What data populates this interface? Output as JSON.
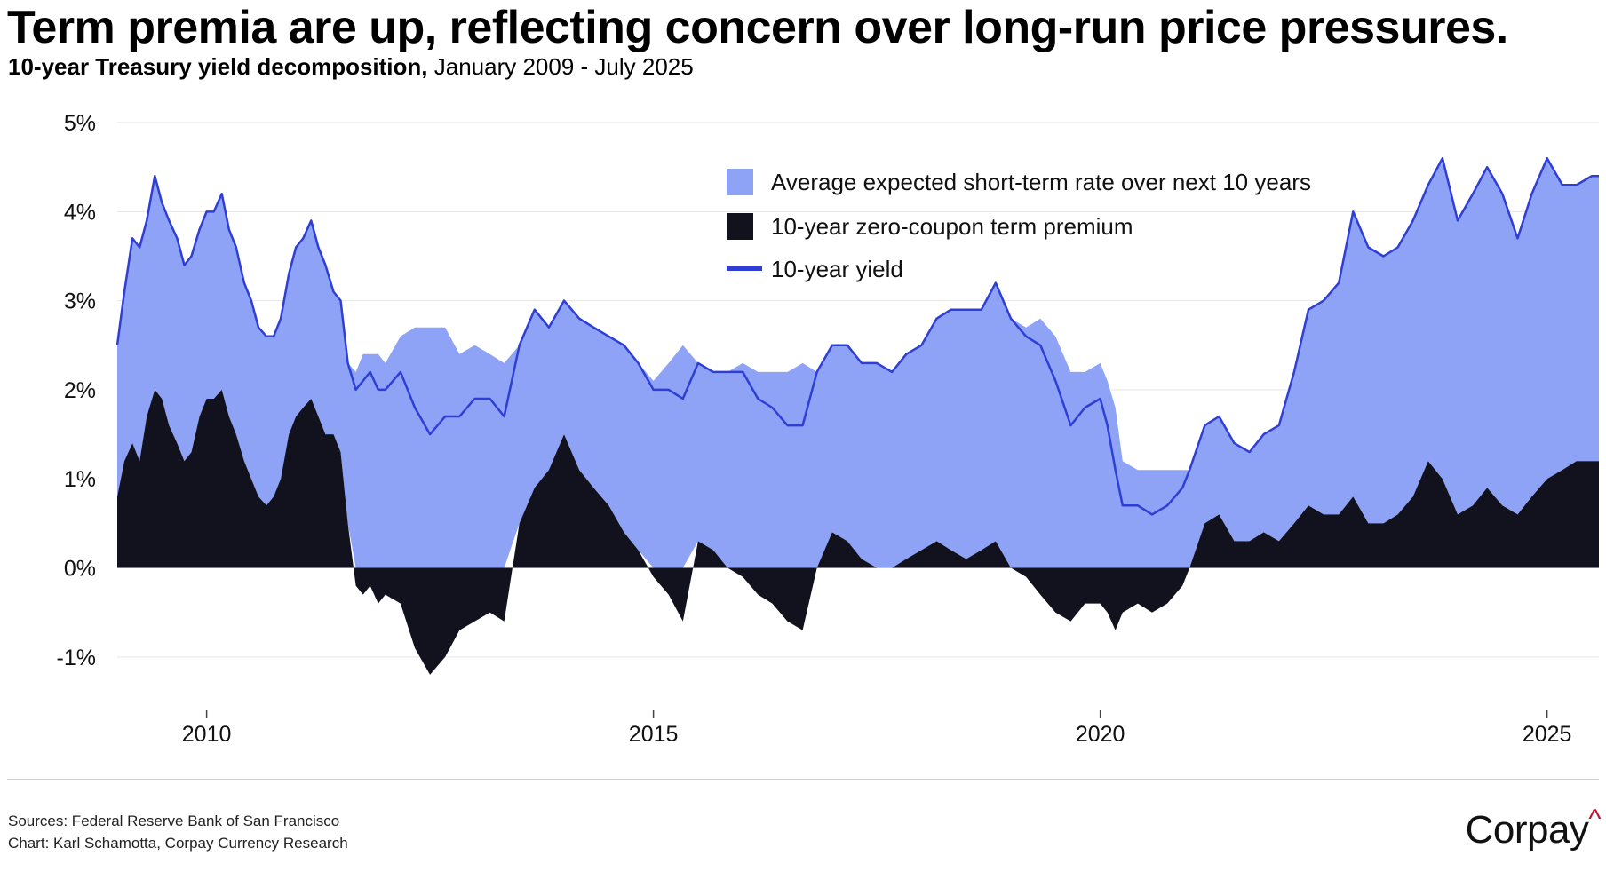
{
  "header": {
    "title": "Term premia are up, reflecting concern over long-run price pressures.",
    "subtitle_strong": "10-year Treasury yield decomposition,",
    "subtitle_rest": " January 2009 - July 2025"
  },
  "footer": {
    "source_line": "Sources: Federal Reserve Bank of San Francisco",
    "chart_line": "Chart: Karl Schamotta, Corpay Currency Research",
    "logo_text": "Corpay",
    "logo_mark": "^"
  },
  "colors": {
    "expected_rate": "#8ea3f5",
    "term_premium": "#12121f",
    "yield": "#2f3fd6",
    "grid": "#e6e6e6",
    "logo_accent": "#c8102e"
  },
  "chart_data": {
    "type": "area",
    "x_unit": "year",
    "xlim": [
      2009.0,
      2025.58
    ],
    "ylim": [
      -1.6,
      5.2
    ],
    "x_ticks": [
      {
        "value": 2010,
        "label": "2010"
      },
      {
        "value": 2015,
        "label": "2015"
      },
      {
        "value": 2020,
        "label": "2020"
      },
      {
        "value": 2025,
        "label": "2025"
      }
    ],
    "y_ticks": [
      {
        "value": 5,
        "label": "5%"
      },
      {
        "value": 4,
        "label": "4%"
      },
      {
        "value": 3,
        "label": "3%"
      },
      {
        "value": 2,
        "label": "2%"
      },
      {
        "value": 1,
        "label": "1%"
      },
      {
        "value": 0,
        "label": "0%"
      },
      {
        "value": -1,
        "label": "-1%"
      }
    ],
    "grid": true,
    "legend_position": "top-center",
    "legend": [
      {
        "key": "expected",
        "label": "Average expected short-term rate over next 10 years",
        "swatch": "square"
      },
      {
        "key": "premium",
        "label": "10-year zero-coupon term premium",
        "swatch": "square"
      },
      {
        "key": "yield",
        "label": "10-year yield",
        "swatch": "line"
      }
    ],
    "x": [
      2009.0,
      2009.08,
      2009.17,
      2009.25,
      2009.33,
      2009.42,
      2009.5,
      2009.58,
      2009.67,
      2009.75,
      2009.83,
      2009.92,
      2010.0,
      2010.08,
      2010.17,
      2010.25,
      2010.33,
      2010.42,
      2010.5,
      2010.58,
      2010.67,
      2010.75,
      2010.83,
      2010.92,
      2011.0,
      2011.08,
      2011.17,
      2011.25,
      2011.33,
      2011.42,
      2011.5,
      2011.58,
      2011.67,
      2011.75,
      2011.83,
      2011.92,
      2012.0,
      2012.17,
      2012.33,
      2012.5,
      2012.67,
      2012.83,
      2013.0,
      2013.17,
      2013.33,
      2013.5,
      2013.67,
      2013.83,
      2014.0,
      2014.17,
      2014.33,
      2014.5,
      2014.67,
      2014.83,
      2015.0,
      2015.17,
      2015.33,
      2015.5,
      2015.67,
      2015.83,
      2016.0,
      2016.17,
      2016.33,
      2016.5,
      2016.67,
      2016.83,
      2017.0,
      2017.17,
      2017.33,
      2017.5,
      2017.67,
      2017.83,
      2018.0,
      2018.17,
      2018.33,
      2018.5,
      2018.67,
      2018.83,
      2019.0,
      2019.17,
      2019.33,
      2019.5,
      2019.67,
      2019.83,
      2020.0,
      2020.08,
      2020.17,
      2020.25,
      2020.42,
      2020.58,
      2020.75,
      2020.92,
      2021.0,
      2021.17,
      2021.33,
      2021.5,
      2021.67,
      2021.83,
      2022.0,
      2022.17,
      2022.33,
      2022.5,
      2022.67,
      2022.83,
      2023.0,
      2023.17,
      2023.33,
      2023.5,
      2023.67,
      2023.83,
      2024.0,
      2024.17,
      2024.33,
      2024.5,
      2024.67,
      2024.83,
      2025.0,
      2025.17,
      2025.33,
      2025.5,
      2025.58
    ],
    "series": [
      {
        "key": "yield",
        "name": "10-year yield",
        "values": [
          2.5,
          3.1,
          3.7,
          3.6,
          3.9,
          4.4,
          4.1,
          3.9,
          3.7,
          3.4,
          3.5,
          3.8,
          4.0,
          4.0,
          4.2,
          3.8,
          3.6,
          3.2,
          3.0,
          2.7,
          2.6,
          2.6,
          2.8,
          3.3,
          3.6,
          3.7,
          3.9,
          3.6,
          3.4,
          3.1,
          3.0,
          2.3,
          2.0,
          2.1,
          2.2,
          2.0,
          2.0,
          2.2,
          1.8,
          1.5,
          1.7,
          1.7,
          1.9,
          1.9,
          1.7,
          2.5,
          2.9,
          2.7,
          3.0,
          2.8,
          2.7,
          2.6,
          2.5,
          2.3,
          2.0,
          2.0,
          1.9,
          2.3,
          2.2,
          2.2,
          2.2,
          1.9,
          1.8,
          1.6,
          1.6,
          2.2,
          2.5,
          2.5,
          2.3,
          2.3,
          2.2,
          2.4,
          2.5,
          2.8,
          2.9,
          2.9,
          2.9,
          3.2,
          2.8,
          2.6,
          2.5,
          2.1,
          1.6,
          1.8,
          1.9,
          1.6,
          1.1,
          0.7,
          0.7,
          0.6,
          0.7,
          0.9,
          1.1,
          1.6,
          1.7,
          1.4,
          1.3,
          1.5,
          1.6,
          2.2,
          2.9,
          3.0,
          3.2,
          4.0,
          3.6,
          3.5,
          3.6,
          3.9,
          4.3,
          4.6,
          3.9,
          4.2,
          4.5,
          4.2,
          3.7,
          4.2,
          4.6,
          4.3,
          4.3,
          4.4,
          4.4
        ]
      },
      {
        "key": "premium",
        "name": "10-year zero-coupon term premium",
        "values": [
          0.8,
          1.2,
          1.4,
          1.2,
          1.7,
          2.0,
          1.9,
          1.6,
          1.4,
          1.2,
          1.3,
          1.7,
          1.9,
          1.9,
          2.0,
          1.7,
          1.5,
          1.2,
          1.0,
          0.8,
          0.7,
          0.8,
          1.0,
          1.5,
          1.7,
          1.8,
          1.9,
          1.7,
          1.5,
          1.5,
          1.3,
          0.5,
          -0.2,
          -0.3,
          -0.2,
          -0.4,
          -0.3,
          -0.4,
          -0.9,
          -1.2,
          -1.0,
          -0.7,
          -0.6,
          -0.5,
          -0.6,
          0.5,
          0.9,
          1.1,
          1.5,
          1.1,
          0.9,
          0.7,
          0.4,
          0.2,
          -0.1,
          -0.3,
          -0.6,
          0.3,
          0.2,
          0.0,
          -0.1,
          -0.3,
          -0.4,
          -0.6,
          -0.7,
          0.0,
          0.4,
          0.3,
          0.1,
          0.0,
          0.0,
          0.1,
          0.2,
          0.3,
          0.2,
          0.1,
          0.2,
          0.3,
          0.0,
          -0.1,
          -0.3,
          -0.5,
          -0.6,
          -0.4,
          -0.4,
          -0.5,
          -0.7,
          -0.5,
          -0.4,
          -0.5,
          -0.4,
          -0.2,
          0.0,
          0.5,
          0.6,
          0.3,
          0.3,
          0.4,
          0.3,
          0.5,
          0.7,
          0.6,
          0.6,
          0.8,
          0.5,
          0.5,
          0.6,
          0.8,
          1.2,
          1.0,
          0.6,
          0.7,
          0.9,
          0.7,
          0.6,
          0.8,
          1.0,
          1.1,
          1.2,
          1.2,
          1.2
        ]
      },
      {
        "key": "expected",
        "name": "Average expected short-term rate over next 10 years",
        "values": [
          1.7,
          1.9,
          2.3,
          2.4,
          2.2,
          2.4,
          2.2,
          2.3,
          2.3,
          2.2,
          2.2,
          2.1,
          2.1,
          2.1,
          2.2,
          2.1,
          2.1,
          2.0,
          2.0,
          1.9,
          1.9,
          1.8,
          1.8,
          1.8,
          1.9,
          1.9,
          2.0,
          1.9,
          1.9,
          1.6,
          1.7,
          1.8,
          2.2,
          2.4,
          2.4,
          2.4,
          2.3,
          2.6,
          2.7,
          2.7,
          2.7,
          2.4,
          2.5,
          2.4,
          2.3,
          2.0,
          2.0,
          1.6,
          1.5,
          1.7,
          1.8,
          1.9,
          2.1,
          2.1,
          2.1,
          2.3,
          2.5,
          2.0,
          2.0,
          2.2,
          2.3,
          2.2,
          2.2,
          2.2,
          2.3,
          2.2,
          2.1,
          2.2,
          2.2,
          2.3,
          2.2,
          2.3,
          2.3,
          2.5,
          2.7,
          2.8,
          2.7,
          2.9,
          2.8,
          2.7,
          2.8,
          2.6,
          2.2,
          2.2,
          2.3,
          2.1,
          1.8,
          1.2,
          1.1,
          1.1,
          1.1,
          1.1,
          1.1,
          1.1,
          1.1,
          1.1,
          1.0,
          1.1,
          1.3,
          1.7,
          2.2,
          2.4,
          2.6,
          3.2,
          3.1,
          3.0,
          3.0,
          3.1,
          3.1,
          3.6,
          3.3,
          3.5,
          3.6,
          3.5,
          3.1,
          3.4,
          3.6,
          3.2,
          3.1,
          3.2,
          3.2
        ]
      }
    ]
  }
}
